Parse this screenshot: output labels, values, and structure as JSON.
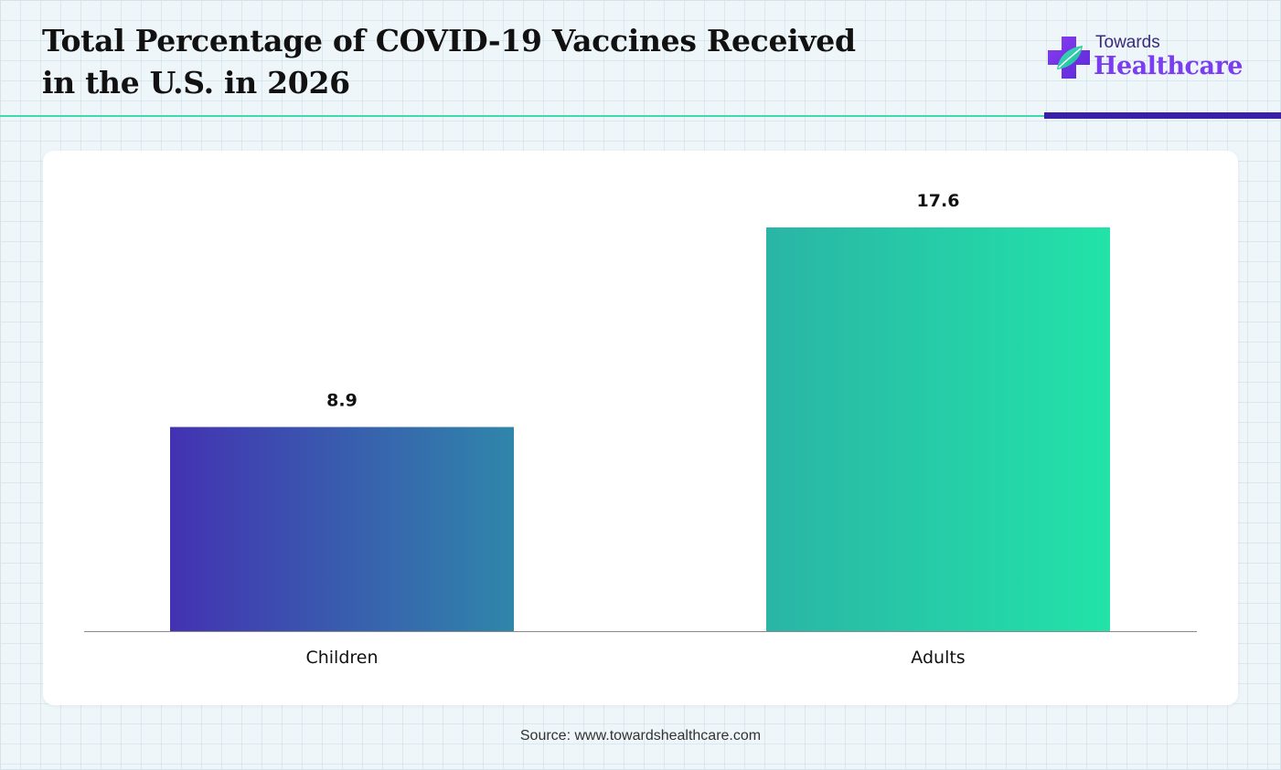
{
  "header": {
    "title_line1": "Total Percentage of COVID-19 Vaccines Received",
    "title_line2": "in the U.S. in 2026"
  },
  "logo": {
    "top_text": "Towards",
    "bottom_text": "Healthcare",
    "icon": "medical-cross-leaf-icon"
  },
  "colors": {
    "teal_rule": "#3fd9b0",
    "purple_rule": "#3a1fa8",
    "bar_children_start": "#4332b2",
    "bar_children_end": "#2f86aa",
    "bar_adults_start": "#2ab5a6",
    "bar_adults_end": "#22e3a8"
  },
  "chart_data": {
    "type": "bar",
    "title": "Total Percentage of COVID-19 Vaccines Received in the U.S. in 2026",
    "categories": [
      "Children",
      "Adults"
    ],
    "values": [
      8.9,
      17.6
    ],
    "labels": [
      "8.9",
      "17.6"
    ],
    "xlabel": "",
    "ylabel": "",
    "ylim": [
      0,
      17.6
    ],
    "grid": false,
    "legend": "none"
  },
  "footer": {
    "source": "Source: www.towardshealthcare.com"
  }
}
